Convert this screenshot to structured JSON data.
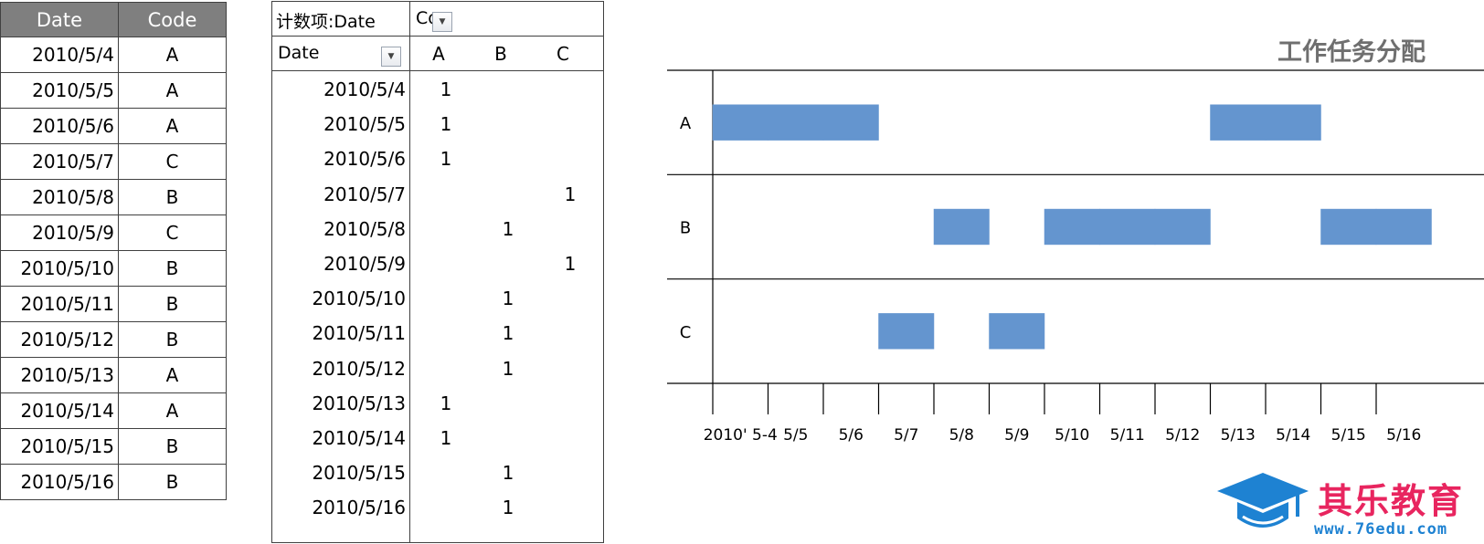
{
  "source_table": {
    "headers": {
      "date": "Date",
      "code": "Code"
    },
    "rows": [
      {
        "date": "2010/5/4",
        "code": "A"
      },
      {
        "date": "2010/5/5",
        "code": "A"
      },
      {
        "date": "2010/5/6",
        "code": "A"
      },
      {
        "date": "2010/5/7",
        "code": "C"
      },
      {
        "date": "2010/5/8",
        "code": "B"
      },
      {
        "date": "2010/5/9",
        "code": "C"
      },
      {
        "date": "2010/5/10",
        "code": "B"
      },
      {
        "date": "2010/5/11",
        "code": "B"
      },
      {
        "date": "2010/5/12",
        "code": "B"
      },
      {
        "date": "2010/5/13",
        "code": "A"
      },
      {
        "date": "2010/5/14",
        "code": "A"
      },
      {
        "date": "2010/5/15",
        "code": "B"
      },
      {
        "date": "2010/5/16",
        "code": "B"
      }
    ]
  },
  "pivot": {
    "value_field_label": "计数项:Date",
    "column_field_label": "Coc",
    "row_field_label": "Date",
    "columns": [
      "A",
      "B",
      "C"
    ],
    "rows": [
      {
        "date": "2010/5/4",
        "counts": [
          "1",
          "",
          ""
        ]
      },
      {
        "date": "2010/5/5",
        "counts": [
          "1",
          "",
          ""
        ]
      },
      {
        "date": "2010/5/6",
        "counts": [
          "1",
          "",
          ""
        ]
      },
      {
        "date": "2010/5/7",
        "counts": [
          "",
          "",
          "1"
        ]
      },
      {
        "date": "2010/5/8",
        "counts": [
          "",
          "1",
          ""
        ]
      },
      {
        "date": "2010/5/9",
        "counts": [
          "",
          "",
          "1"
        ]
      },
      {
        "date": "2010/5/10",
        "counts": [
          "",
          "1",
          ""
        ]
      },
      {
        "date": "2010/5/11",
        "counts": [
          "",
          "1",
          ""
        ]
      },
      {
        "date": "2010/5/12",
        "counts": [
          "",
          "1",
          ""
        ]
      },
      {
        "date": "2010/5/13",
        "counts": [
          "1",
          "",
          ""
        ]
      },
      {
        "date": "2010/5/14",
        "counts": [
          "1",
          "",
          ""
        ]
      },
      {
        "date": "2010/5/15",
        "counts": [
          "",
          "1",
          ""
        ]
      },
      {
        "date": "2010/5/16",
        "counts": [
          "",
          "1",
          ""
        ]
      }
    ]
  },
  "chart_data": {
    "type": "bar",
    "title": "工作任务分配",
    "categories": [
      "A",
      "B",
      "C"
    ],
    "x_tick_labels": [
      "2010' 5-4",
      "5/5",
      "5/6",
      "5/7",
      "5/8",
      "5/9",
      "5/10",
      "5/11",
      "5/12",
      "5/13",
      "5/14",
      "5/15",
      "5/16"
    ],
    "series": [
      {
        "category": "A",
        "days": [
          "5/4",
          "5/5",
          "5/6",
          "5/13",
          "5/14"
        ]
      },
      {
        "category": "B",
        "days": [
          "5/8",
          "5/10",
          "5/11",
          "5/12",
          "5/15",
          "5/16"
        ]
      },
      {
        "category": "C",
        "days": [
          "5/7",
          "5/9"
        ]
      }
    ],
    "bar_color": "#6495cf",
    "grid": false,
    "legend": "none"
  },
  "logo": {
    "name": "其乐教育",
    "url": "www.76edu.com",
    "colors": {
      "name": "#e8255f",
      "icon": "#1e82d2"
    },
    "icon": "graduation-cap-icon"
  }
}
